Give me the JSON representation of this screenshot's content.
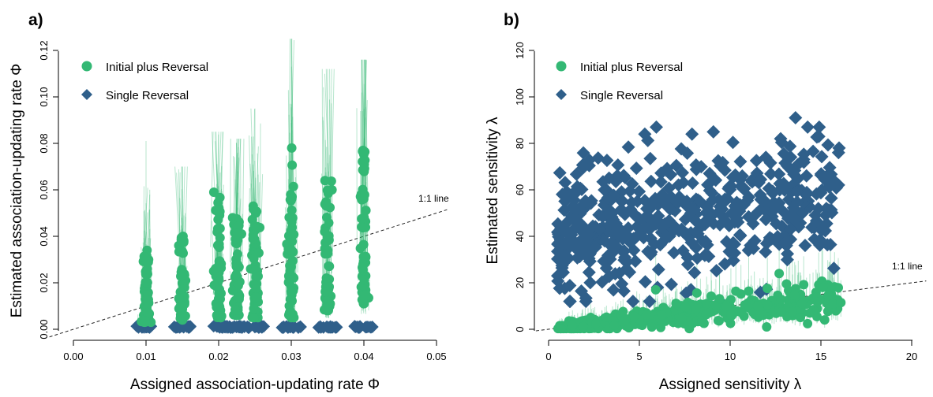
{
  "chart_data": [
    {
      "type": "scatter",
      "panel_label": "a)",
      "xlabel": "Assigned association-updating rate Φ",
      "ylabel": "Estimated association-updating rate Φ",
      "xlim": [
        0,
        0.05
      ],
      "ylim": [
        0,
        0.12
      ],
      "x_ticks": [
        "0.00",
        "0.01",
        "0.02",
        "0.03",
        "0.04",
        "0.05"
      ],
      "y_ticks": [
        "0.00",
        "0.02",
        "0.04",
        "0.06",
        "0.08",
        "0.10",
        "0.12"
      ],
      "reference_line": {
        "label": "1:1 line",
        "slope": 1,
        "intercept": 0
      },
      "legend": {
        "placement": "top-left",
        "entries": [
          "Initial plus Reversal",
          "Single Reversal"
        ]
      },
      "error_bars": true,
      "series": [
        {
          "name": "Initial plus Reversal",
          "marker": "circle",
          "color": "#33b874",
          "groups": [
            {
              "x": 0.01,
              "min": 0.003,
              "max": 0.034,
              "top_error": 0.081
            },
            {
              "x": 0.015,
              "min": 0.004,
              "max": 0.04,
              "top_error": 0.07
            },
            {
              "x": 0.02,
              "min": 0.005,
              "max": 0.059,
              "top_error": 0.085
            },
            {
              "x": 0.0225,
              "min": 0.006,
              "max": 0.048,
              "top_error": 0.082
            },
            {
              "x": 0.025,
              "min": 0.005,
              "max": 0.053,
              "top_error": 0.095
            },
            {
              "x": 0.03,
              "min": 0.005,
              "max": 0.078,
              "top_error": 0.125
            },
            {
              "x": 0.035,
              "min": 0.008,
              "max": 0.064,
              "top_error": 0.112
            },
            {
              "x": 0.04,
              "min": 0.011,
              "max": 0.077,
              "top_error": 0.116
            }
          ]
        },
        {
          "name": "Single Reversal",
          "marker": "diamond",
          "color": "#2f5f8a",
          "groups": [
            {
              "x": 0.01,
              "value": 0.001
            },
            {
              "x": 0.015,
              "value": 0.001
            },
            {
              "x": 0.02,
              "value": 0.001
            },
            {
              "x": 0.0225,
              "value": 0.001
            },
            {
              "x": 0.025,
              "value": 0.001
            },
            {
              "x": 0.03,
              "value": 0.001
            },
            {
              "x": 0.035,
              "value": 0.001
            },
            {
              "x": 0.04,
              "value": 0.001
            }
          ]
        }
      ]
    },
    {
      "type": "scatter",
      "panel_label": "b)",
      "xlabel": "Assigned sensitivity λ",
      "ylabel": "Estimated sensitivity λ",
      "xlim": [
        0,
        20
      ],
      "ylim": [
        0,
        120
      ],
      "x_ticks": [
        "0",
        "5",
        "10",
        "15",
        "20"
      ],
      "y_ticks": [
        "0",
        "20",
        "40",
        "60",
        "80",
        "100",
        "120"
      ],
      "reference_line": {
        "label": "1:1 line",
        "slope": 1,
        "intercept": 0
      },
      "legend": {
        "placement": "top-left",
        "entries": [
          "Initial plus Reversal",
          "Single Reversal"
        ]
      },
      "error_bars": true,
      "series": [
        {
          "name": "Initial plus Reversal",
          "marker": "circle",
          "color": "#33b874",
          "x_range": [
            0.5,
            16
          ],
          "trend": "approximately y = x, values 0 to 24",
          "highlights": [
            {
              "x": 5.9,
              "y": 17
            },
            {
              "x": 12.7,
              "y": 24
            },
            {
              "x": 16.1,
              "y": 11.5
            },
            {
              "x": 15.1,
              "y": 18
            }
          ]
        },
        {
          "name": "Single Reversal",
          "marker": "diamond",
          "color": "#2f5f8a",
          "x_range": [
            0.5,
            16
          ],
          "y_range": [
            12,
            91
          ],
          "highlights": [
            {
              "x": 5.3,
              "y": 84
            },
            {
              "x": 7.9,
              "y": 84
            },
            {
              "x": 13.6,
              "y": 91
            },
            {
              "x": 16.0,
              "y": 78
            },
            {
              "x": 1.6,
              "y": 59.5
            },
            {
              "x": 15.3,
              "y": 52
            },
            {
              "x": 0.5,
              "y": 23
            }
          ]
        }
      ]
    }
  ]
}
